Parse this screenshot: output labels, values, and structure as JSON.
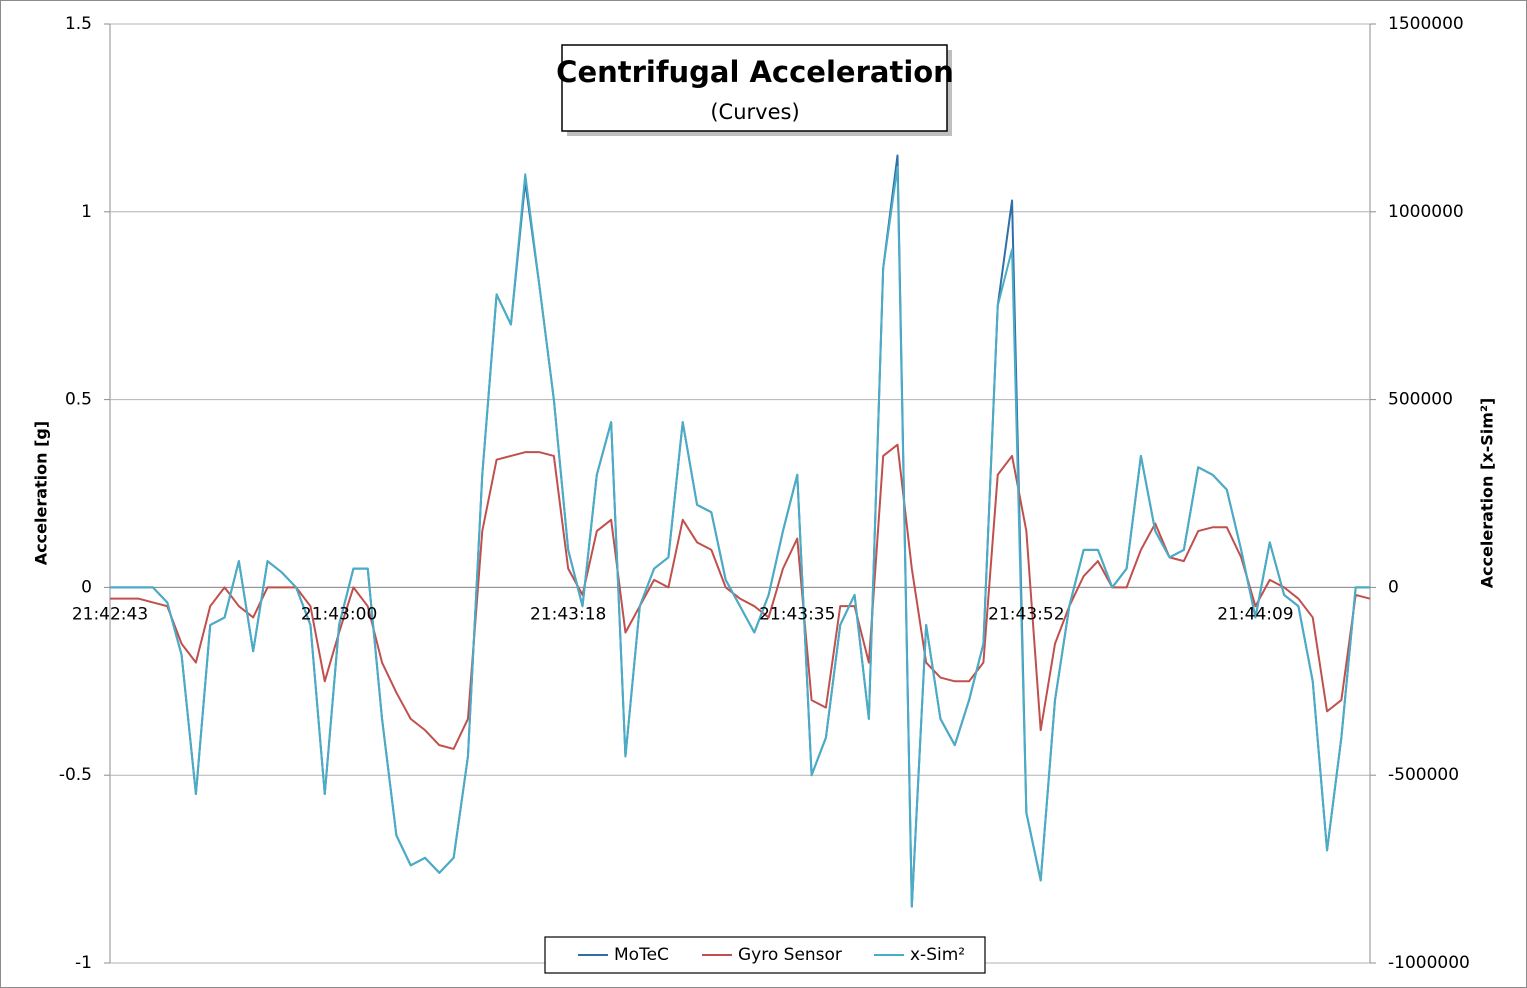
{
  "chart_data": {
    "type": "line",
    "title": "Centrifugal Acceleration",
    "subtitle": "(Curves)",
    "ylabel": "Acceleration [g]",
    "y2label": "Acceleration [x-Sim²]",
    "categories": [
      "21:42:43",
      null,
      null,
      null,
      null,
      null,
      null,
      null,
      null,
      null,
      null,
      null,
      null,
      null,
      null,
      null,
      "21:43:00",
      null,
      null,
      null,
      null,
      null,
      null,
      null,
      null,
      null,
      null,
      null,
      null,
      null,
      null,
      null,
      "21:43:18",
      null,
      null,
      null,
      null,
      null,
      null,
      null,
      null,
      null,
      null,
      null,
      null,
      null,
      null,
      null,
      "21:43:35",
      null,
      null,
      null,
      null,
      null,
      null,
      null,
      null,
      null,
      null,
      null,
      null,
      null,
      null,
      null,
      "21:43:52",
      null,
      null,
      null,
      null,
      null,
      null,
      null,
      null,
      null,
      null,
      null,
      null,
      null,
      null,
      null,
      "21:44:09",
      null,
      null,
      null,
      null,
      null,
      null,
      null,
      null
    ],
    "ylim": [
      -1,
      1.5
    ],
    "yticks": [
      -1,
      -0.5,
      0,
      0.5,
      1,
      1.5
    ],
    "y2lim": [
      -1000000,
      1500000
    ],
    "y2ticks": [
      -1000000,
      -500000,
      0,
      500000,
      1000000,
      1500000
    ],
    "grid": true,
    "legend": "bottom",
    "series": [
      {
        "name": "MoTeC",
        "color": "#2f6ea6",
        "values": [
          0,
          0,
          0,
          0,
          -0.04,
          -0.18,
          -0.55,
          -0.1,
          -0.08,
          0.07,
          -0.17,
          0.07,
          0.04,
          0,
          -0.1,
          -0.55,
          -0.1,
          0.05,
          0.05,
          -0.35,
          -0.66,
          -0.74,
          -0.72,
          -0.76,
          -0.72,
          -0.45,
          0.3,
          0.78,
          0.7,
          1.08,
          0.8,
          0.5,
          0.1,
          -0.05,
          0.3,
          0.44,
          -0.45,
          -0.05,
          0.05,
          0.08,
          0.44,
          0.22,
          0.2,
          0.02,
          -0.05,
          -0.12,
          -0.02,
          0.15,
          0.3,
          -0.5,
          -0.4,
          -0.1,
          -0.02,
          -0.35,
          0.85,
          1.15,
          -0.85,
          -0.1,
          -0.35,
          -0.42,
          -0.3,
          -0.15,
          0.75,
          1.03,
          -0.6,
          -0.78,
          -0.3,
          -0.05,
          0.1,
          0.1,
          0,
          0.05,
          0.35,
          0.15,
          0.08,
          0.1,
          0.32,
          0.3,
          0.26,
          0.1,
          -0.08,
          0.12,
          -0.02,
          -0.05,
          -0.25,
          -0.7,
          -0.4,
          0,
          0
        ]
      },
      {
        "name": "Gyro Sensor",
        "color": "#c0504d",
        "values": [
          -0.03,
          -0.03,
          -0.03,
          -0.04,
          -0.05,
          -0.15,
          -0.2,
          -0.05,
          0,
          -0.05,
          -0.08,
          0,
          0,
          0,
          -0.05,
          -0.25,
          -0.12,
          0,
          -0.05,
          -0.2,
          -0.28,
          -0.35,
          -0.38,
          -0.42,
          -0.43,
          -0.35,
          0.15,
          0.34,
          0.35,
          0.36,
          0.36,
          0.35,
          0.05,
          -0.02,
          0.15,
          0.18,
          -0.12,
          -0.05,
          0.02,
          0,
          0.18,
          0.12,
          0.1,
          0,
          -0.03,
          -0.05,
          -0.08,
          0.05,
          0.13,
          -0.3,
          -0.32,
          -0.05,
          -0.05,
          -0.2,
          0.35,
          0.38,
          0.05,
          -0.2,
          -0.24,
          -0.25,
          -0.25,
          -0.2,
          0.3,
          0.35,
          0.15,
          -0.38,
          -0.15,
          -0.05,
          0.03,
          0.07,
          0,
          0,
          0.1,
          0.17,
          0.08,
          0.07,
          0.15,
          0.16,
          0.16,
          0.08,
          -0.05,
          0.02,
          0,
          -0.03,
          -0.08,
          -0.33,
          -0.3,
          -0.02,
          -0.03
        ]
      },
      {
        "name": "x-Sim²",
        "color": "#4bacc6",
        "axis": "y2",
        "values": [
          0,
          0,
          0,
          0,
          -40000,
          -180000,
          -550000,
          -100000,
          -80000,
          70000,
          -170000,
          70000,
          40000,
          0,
          -100000,
          -550000,
          -100000,
          50000,
          50000,
          -350000,
          -660000,
          -740000,
          -720000,
          -760000,
          -720000,
          -450000,
          300000,
          780000,
          700000,
          1100000,
          800000,
          500000,
          100000,
          -50000,
          300000,
          440000,
          -450000,
          -50000,
          50000,
          80000,
          440000,
          220000,
          200000,
          20000,
          -50000,
          -120000,
          -20000,
          150000,
          300000,
          -500000,
          -400000,
          -100000,
          -20000,
          -350000,
          850000,
          1120000,
          -850000,
          -100000,
          -350000,
          -420000,
          -300000,
          -150000,
          750000,
          900000,
          -600000,
          -780000,
          -300000,
          -50000,
          100000,
          100000,
          0,
          50000,
          350000,
          150000,
          80000,
          100000,
          320000,
          300000,
          260000,
          100000,
          -80000,
          120000,
          -20000,
          -50000,
          -250000,
          -700000,
          -400000,
          0,
          0
        ]
      }
    ]
  }
}
